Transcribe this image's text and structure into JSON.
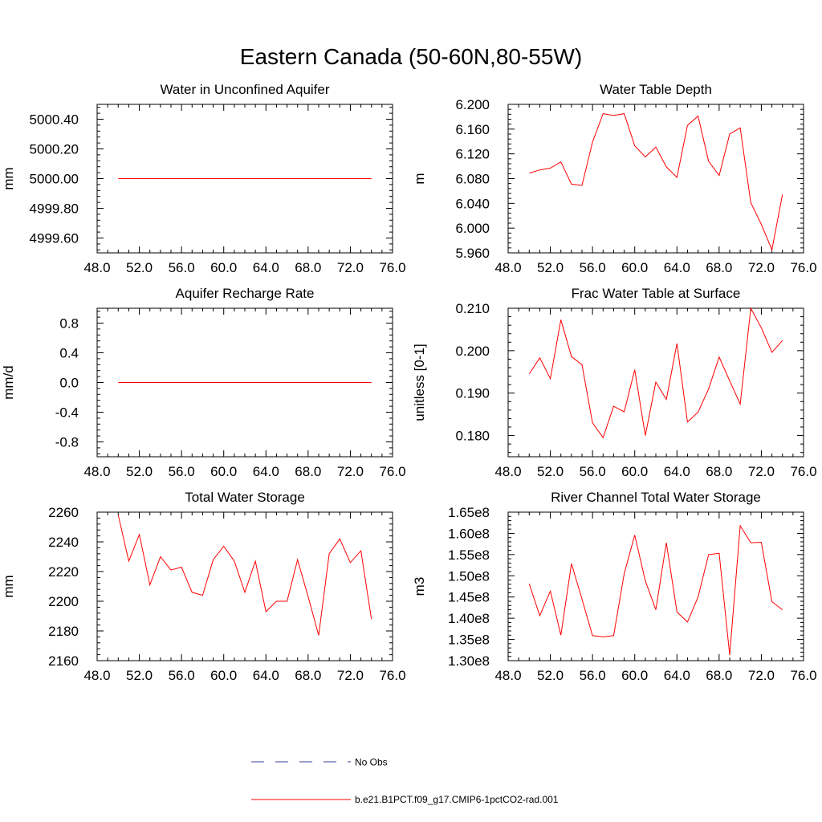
{
  "title": "Eastern Canada (50-60N,80-55W)",
  "colors": {
    "series": "#ff0000",
    "obs": "#3a3aa0",
    "axis": "#000000"
  },
  "legend": {
    "entries": [
      {
        "label": "No Obs",
        "style": "dashed",
        "color": "#3a3aa0"
      },
      {
        "label": "b.e21.B1PCT.f09_g17.CMIP6-1pctCO2-rad.001",
        "style": "solid",
        "color": "#ff0000"
      }
    ]
  },
  "chart_data": [
    {
      "type": "line",
      "title": "Water in Unconfined Aquifer",
      "ylabel": "mm",
      "xlim": [
        48,
        76
      ],
      "ylim": [
        4999.5,
        5000.5
      ],
      "xticks": [
        48,
        52,
        56,
        60,
        64,
        68,
        72,
        76
      ],
      "xtick_labels": [
        "48.0",
        "52.0",
        "56.0",
        "60.0",
        "64.0",
        "68.0",
        "72.0",
        "76.0"
      ],
      "yticks": [
        4999.6,
        4999.8,
        5000.0,
        5000.2,
        5000.4
      ],
      "ytick_labels": [
        "4999.60",
        "4999.80",
        "5000.00",
        "5000.20",
        "5000.40"
      ],
      "x": [
        50,
        51,
        52,
        53,
        54,
        55,
        56,
        57,
        58,
        59,
        60,
        61,
        62,
        63,
        64,
        65,
        66,
        67,
        68,
        69,
        70,
        71,
        72,
        73,
        74
      ],
      "y": [
        5000,
        5000,
        5000,
        5000,
        5000,
        5000,
        5000,
        5000,
        5000,
        5000,
        5000,
        5000,
        5000,
        5000,
        5000,
        5000,
        5000,
        5000,
        5000,
        5000,
        5000,
        5000,
        5000,
        5000,
        5000
      ]
    },
    {
      "type": "line",
      "title": "Water Table Depth",
      "ylabel": "m",
      "xlim": [
        48,
        76
      ],
      "ylim": [
        5.96,
        6.2
      ],
      "xticks": [
        48,
        52,
        56,
        60,
        64,
        68,
        72,
        76
      ],
      "xtick_labels": [
        "48.0",
        "52.0",
        "56.0",
        "60.0",
        "64.0",
        "68.0",
        "72.0",
        "76.0"
      ],
      "yticks": [
        5.96,
        6.0,
        6.04,
        6.08,
        6.12,
        6.16,
        6.2
      ],
      "ytick_labels": [
        "5.960",
        "6.000",
        "6.040",
        "6.080",
        "6.120",
        "6.160",
        "6.200"
      ],
      "x": [
        50,
        51,
        52,
        53,
        54,
        55,
        56,
        57,
        58,
        59,
        60,
        61,
        62,
        63,
        64,
        65,
        66,
        67,
        68,
        69,
        70,
        71,
        72,
        73,
        74
      ],
      "y": [
        6.089,
        6.094,
        6.097,
        6.107,
        6.071,
        6.069,
        6.139,
        6.185,
        6.182,
        6.185,
        6.133,
        6.115,
        6.131,
        6.099,
        6.082,
        6.166,
        6.181,
        6.108,
        6.085,
        6.152,
        6.162,
        6.041,
        6.006,
        5.965,
        6.054
      ]
    },
    {
      "type": "line",
      "title": "Aquifer Recharge Rate",
      "ylabel": "mm/d",
      "xlim": [
        48,
        76
      ],
      "ylim": [
        -1.0,
        1.0
      ],
      "xticks": [
        48,
        52,
        56,
        60,
        64,
        68,
        72,
        76
      ],
      "xtick_labels": [
        "48.0",
        "52.0",
        "56.0",
        "60.0",
        "64.0",
        "68.0",
        "72.0",
        "76.0"
      ],
      "yticks": [
        -0.8,
        -0.4,
        0.0,
        0.4,
        0.8
      ],
      "ytick_labels": [
        "-0.8",
        "-0.4",
        "0.0",
        "0.4",
        "0.8"
      ],
      "x": [
        50,
        51,
        52,
        53,
        54,
        55,
        56,
        57,
        58,
        59,
        60,
        61,
        62,
        63,
        64,
        65,
        66,
        67,
        68,
        69,
        70,
        71,
        72,
        73,
        74
      ],
      "y": [
        0,
        0,
        0,
        0,
        0,
        0,
        0,
        0,
        0,
        0,
        0,
        0,
        0,
        0,
        0,
        0,
        0,
        0,
        0,
        0,
        0,
        0,
        0,
        0,
        0
      ]
    },
    {
      "type": "line",
      "title": "Frac Water Table at Surface",
      "ylabel": "unitless [0-1]",
      "xlim": [
        48,
        76
      ],
      "ylim": [
        0.175,
        0.21
      ],
      "xticks": [
        48,
        52,
        56,
        60,
        64,
        68,
        72,
        76
      ],
      "xtick_labels": [
        "48.0",
        "52.0",
        "56.0",
        "60.0",
        "64.0",
        "68.0",
        "72.0",
        "76.0"
      ],
      "yticks": [
        0.18,
        0.19,
        0.2,
        0.21
      ],
      "ytick_labels": [
        "0.180",
        "0.190",
        "0.200",
        "0.210"
      ],
      "x": [
        50,
        51,
        52,
        53,
        54,
        55,
        56,
        57,
        58,
        59,
        60,
        61,
        62,
        63,
        64,
        65,
        66,
        67,
        68,
        69,
        70,
        71,
        72,
        73,
        74
      ],
      "y": [
        0.1945,
        0.1983,
        0.1934,
        0.2073,
        0.1986,
        0.1967,
        0.183,
        0.1795,
        0.1869,
        0.1856,
        0.1955,
        0.18,
        0.1926,
        0.1885,
        0.2017,
        0.1832,
        0.1855,
        0.191,
        0.1985,
        0.1929,
        0.1874,
        0.21,
        0.2054,
        0.1996,
        0.2024
      ]
    },
    {
      "type": "line",
      "title": "Total Water Storage",
      "ylabel": "mm",
      "xlim": [
        48,
        76
      ],
      "ylim": [
        2160,
        2260
      ],
      "xticks": [
        48,
        52,
        56,
        60,
        64,
        68,
        72,
        76
      ],
      "xtick_labels": [
        "48.0",
        "52.0",
        "56.0",
        "60.0",
        "64.0",
        "68.0",
        "72.0",
        "76.0"
      ],
      "yticks": [
        2160,
        2180,
        2200,
        2220,
        2240,
        2260
      ],
      "ytick_labels": [
        "2160",
        "2180",
        "2200",
        "2220",
        "2240",
        "2260"
      ],
      "x": [
        50,
        51,
        52,
        53,
        54,
        55,
        56,
        57,
        58,
        59,
        60,
        61,
        62,
        63,
        64,
        65,
        66,
        67,
        68,
        69,
        70,
        71,
        72,
        73,
        74
      ],
      "y": [
        2258,
        2227,
        2245,
        2211,
        2230,
        2221,
        2223,
        2206,
        2204,
        2228,
        2237,
        2227,
        2206,
        2227,
        2193,
        2200,
        2200,
        2228,
        2203,
        2177,
        2232,
        2242,
        2226,
        2234,
        2188
      ]
    },
    {
      "type": "line",
      "title": "River Channel Total Water Storage",
      "ylabel": "m3",
      "xlim": [
        48,
        76
      ],
      "ylim": [
        130000000.0,
        165000000.0
      ],
      "xticks": [
        48,
        52,
        56,
        60,
        64,
        68,
        72,
        76
      ],
      "xtick_labels": [
        "48.0",
        "52.0",
        "56.0",
        "60.0",
        "64.0",
        "68.0",
        "72.0",
        "76.0"
      ],
      "yticks": [
        130000000.0,
        135000000.0,
        140000000.0,
        145000000.0,
        150000000.0,
        155000000.0,
        160000000.0,
        165000000.0
      ],
      "ytick_labels": [
        "1.30e8",
        "1.35e8",
        "1.40e8",
        "1.45e8",
        "1.50e8",
        "1.55e8",
        "1.60e8",
        "1.65e8"
      ],
      "x": [
        50,
        51,
        52,
        53,
        54,
        55,
        56,
        57,
        58,
        59,
        60,
        61,
        62,
        63,
        64,
        65,
        66,
        67,
        68,
        69,
        70,
        71,
        72,
        73,
        74
      ],
      "y": [
        148100000.0,
        140600000.0,
        146400000.0,
        136000000.0,
        152900000.0,
        144500000.0,
        135900000.0,
        135600000.0,
        135900000.0,
        150500000.0,
        159600000.0,
        148800000.0,
        142000000.0,
        157800000.0,
        141500000.0,
        139100000.0,
        145000000.0,
        155000000.0,
        155300000.0,
        131300000.0,
        161800000.0,
        157800000.0,
        157900000.0,
        143900000.0,
        142000000.0
      ]
    }
  ]
}
